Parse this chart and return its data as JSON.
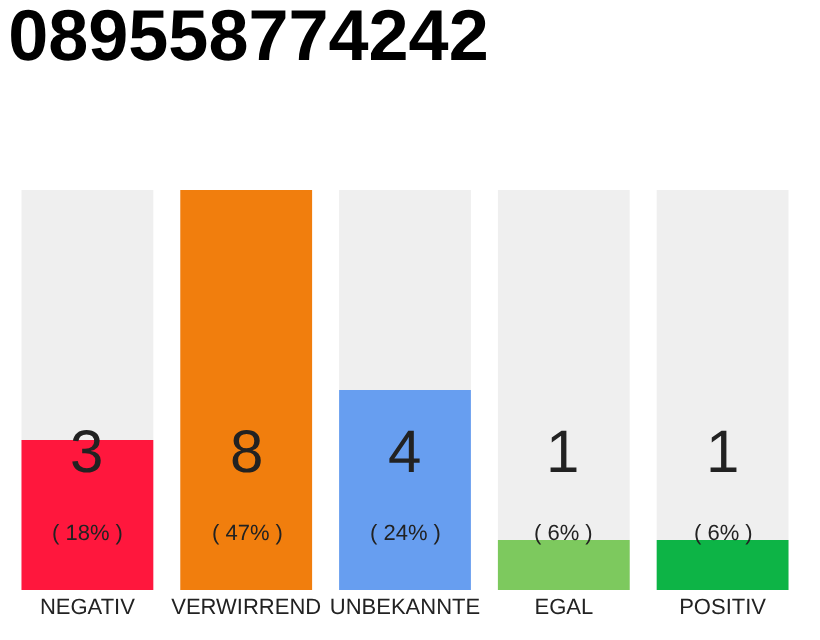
{
  "chart_data": {
    "type": "bar",
    "title": "089558774242",
    "categories": [
      "NEGATIV",
      "VERWIRREND",
      "UNBEKANNTE",
      "EGAL",
      "POSITIV"
    ],
    "values": [
      3,
      8,
      4,
      1,
      1
    ],
    "colors": [
      "#ff173d",
      "#f17e0d",
      "#679ef0",
      "#7dc95e",
      "#0db446"
    ],
    "value_labels": [
      "3\n( 18% )",
      "8\n( 47% )",
      "4\n( 24% )",
      "1\n( 6% )",
      "1\n( 6% )"
    ],
    "ylim": [
      0,
      8
    ],
    "tick_labels": "x",
    "grid": false,
    "legend": false
  }
}
